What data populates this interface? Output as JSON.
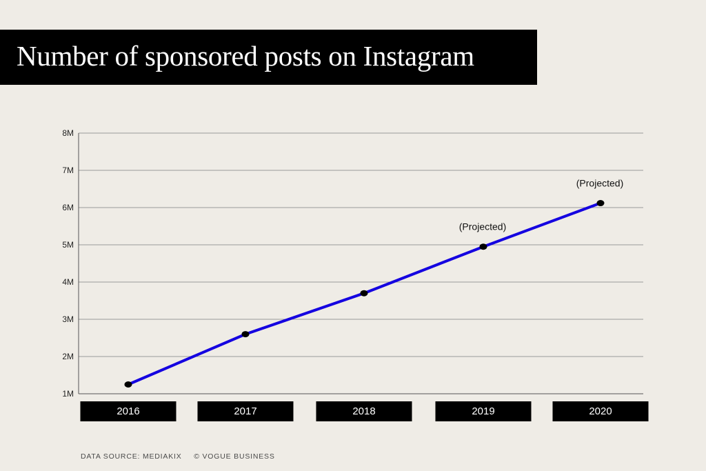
{
  "title": "Number of sponsored posts on Instagram",
  "footer": {
    "source": "DATA SOURCE: MEDIAKIX",
    "credit": "© VOGUE BUSINESS"
  },
  "colors": {
    "background": "#efece6",
    "line": "#1400e0",
    "marker": "#000000",
    "grid": "#9a9a9a",
    "label_box": "#000000"
  },
  "chart_data": {
    "type": "line",
    "title": "Number of sponsored posts on Instagram",
    "xlabel": "",
    "ylabel": "",
    "x": [
      "2016",
      "2017",
      "2018",
      "2019",
      "2020"
    ],
    "series": [
      {
        "values": [
          1.25,
          2.6,
          3.7,
          4.95,
          6.12
        ]
      }
    ],
    "ylim": [
      1,
      8
    ],
    "y_ticks": [
      "1M",
      "2M",
      "3M",
      "4M",
      "5M",
      "6M",
      "7M",
      "8M"
    ],
    "annotations": [
      {
        "x": "2019",
        "text": "(Projected)"
      },
      {
        "x": "2020",
        "text": "(Projected)"
      }
    ],
    "grid": true,
    "legend": "none"
  }
}
